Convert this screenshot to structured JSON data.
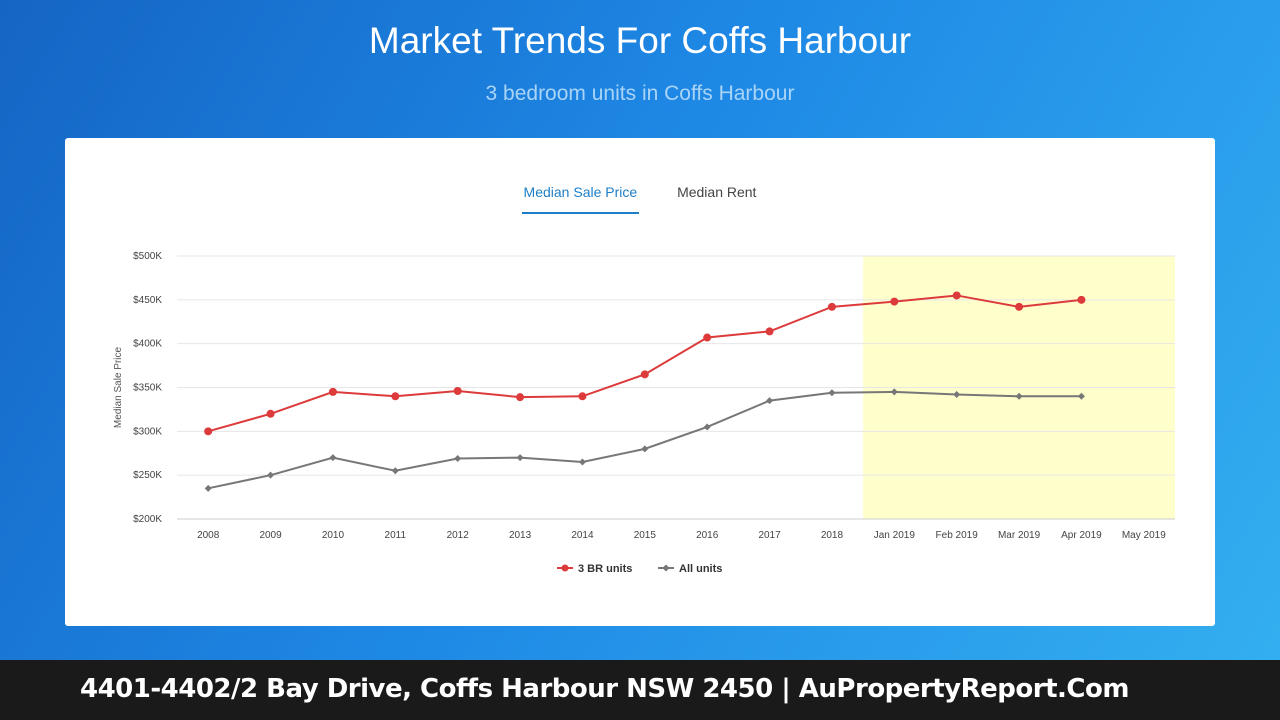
{
  "header": {
    "title": "Market Trends For Coffs Harbour",
    "subtitle": "3 bedroom units in Coffs Harbour"
  },
  "tabs": [
    {
      "label": "Median Sale Price",
      "active": true
    },
    {
      "label": "Median Rent",
      "active": false
    }
  ],
  "footer": {
    "text": "4401-4402/2 Bay Drive, Coffs Harbour NSW 2450 | AuPropertyReport.Com"
  },
  "colors": {
    "accent": "#1e7fc8",
    "series_3br": "#dd3b3b",
    "series_all": "#777777",
    "forecast_band": "#ffffcc"
  },
  "chart_data": {
    "type": "line",
    "title": "",
    "xlabel": "",
    "ylabel": "Median Sale Price",
    "categories": [
      "2008",
      "2009",
      "2010",
      "2011",
      "2012",
      "2013",
      "2014",
      "2015",
      "2016",
      "2017",
      "2018",
      "Jan 2019",
      "Feb 2019",
      "Mar 2019",
      "Apr 2019",
      "May 2019"
    ],
    "ylim": [
      200000,
      500000
    ],
    "yticks": [
      200000,
      250000,
      300000,
      350000,
      400000,
      450000,
      500000
    ],
    "ytick_labels": [
      "$200K",
      "$250K",
      "$300K",
      "$350K",
      "$400K",
      "$450K",
      "$500K"
    ],
    "highlight_band": {
      "from": "Jan 2019",
      "to": "May 2019"
    },
    "grid": true,
    "legend": "bottom",
    "series": [
      {
        "name": "3 BR units",
        "color": "#dd3b3b",
        "marker": "circle",
        "values": [
          300000,
          320000,
          345000,
          340000,
          346000,
          339000,
          340000,
          365000,
          407000,
          414000,
          442000,
          448000,
          455000,
          442000,
          450000,
          null
        ]
      },
      {
        "name": "All units",
        "color": "#777777",
        "marker": "diamond",
        "values": [
          235000,
          250000,
          270000,
          255000,
          269000,
          270000,
          265000,
          280000,
          305000,
          335000,
          344000,
          345000,
          342000,
          340000,
          340000,
          null
        ]
      }
    ]
  }
}
